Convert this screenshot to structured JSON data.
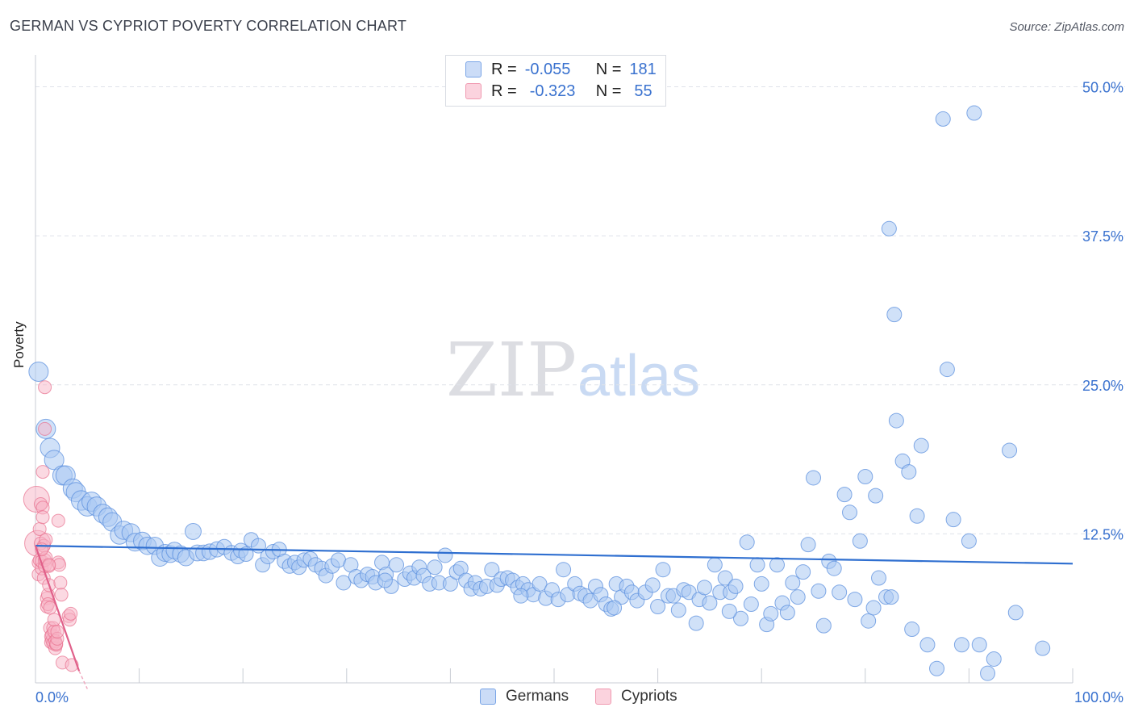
{
  "header": {
    "title": "GERMAN VS CYPRIOT POVERTY CORRELATION CHART",
    "source": "Source: ZipAtlas.com"
  },
  "watermark": {
    "part1": "ZIP",
    "part2": "atlas"
  },
  "legend": {
    "rows": [
      {
        "r_label": "R =",
        "r_value": "-0.055",
        "n_label": "N =",
        "n_value": "181",
        "color": "#a9c8f3"
      },
      {
        "r_label": "R =",
        "r_value": "-0.323",
        "n_label": "N =",
        "n_value": "55",
        "color": "#f7b4c6"
      }
    ]
  },
  "bottom_legend": [
    {
      "label": "Germans",
      "color": "#a9c8f3"
    },
    {
      "label": "Cypriots",
      "color": "#f7b4c6"
    }
  ],
  "chart_data": {
    "type": "scatter",
    "title": "GERMAN VS CYPRIOT POVERTY CORRELATION CHART",
    "xlabel": "",
    "ylabel": "Poverty",
    "xlim": [
      0,
      100
    ],
    "ylim": [
      0,
      52
    ],
    "x_tick_labels": [
      "0.0%",
      "100.0%"
    ],
    "y_ticks": [
      12.5,
      25.0,
      37.5,
      50.0
    ],
    "y_tick_labels": [
      "12.5%",
      "25.0%",
      "37.5%",
      "50.0%"
    ],
    "grid": "horizontal dashed",
    "colors": {
      "germans": "#5b8fde",
      "germans_fill": "#a9c8f3",
      "cypriots": "#e8718f",
      "cypriots_fill": "#f7b4c6",
      "tick_text": "#3a72cf"
    },
    "series": [
      {
        "name": "Germans",
        "trend": {
          "x": [
            0,
            100
          ],
          "y": [
            11.5,
            10.0
          ]
        },
        "points": [
          [
            0.3,
            26.1
          ],
          [
            1.0,
            21.3
          ],
          [
            1.4,
            19.7
          ],
          [
            1.8,
            18.7
          ],
          [
            2.6,
            17.4
          ],
          [
            2.9,
            17.4
          ],
          [
            3.6,
            16.3
          ],
          [
            3.9,
            16.0
          ],
          [
            4.4,
            15.3
          ],
          [
            5.0,
            14.8
          ],
          [
            5.4,
            15.2
          ],
          [
            5.9,
            14.8
          ],
          [
            6.5,
            14.2
          ],
          [
            7.0,
            13.9
          ],
          [
            7.4,
            13.5
          ],
          [
            8.1,
            12.4
          ],
          [
            8.5,
            12.8
          ],
          [
            9.2,
            12.6
          ],
          [
            9.6,
            11.8
          ],
          [
            10.3,
            11.9
          ],
          [
            10.8,
            11.5
          ],
          [
            11.5,
            11.5
          ],
          [
            12.0,
            10.5
          ],
          [
            12.5,
            10.9
          ],
          [
            13.0,
            10.8
          ],
          [
            13.4,
            11.1
          ],
          [
            14.0,
            10.8
          ],
          [
            14.5,
            10.5
          ],
          [
            15.2,
            12.7
          ],
          [
            15.6,
            10.9
          ],
          [
            16.2,
            10.9
          ],
          [
            16.8,
            11.0
          ],
          [
            17.5,
            11.2
          ],
          [
            18.2,
            11.4
          ],
          [
            18.9,
            10.9
          ],
          [
            19.5,
            10.6
          ],
          [
            19.8,
            11.1
          ],
          [
            20.3,
            10.8
          ],
          [
            20.8,
            12.0
          ],
          [
            21.5,
            11.5
          ],
          [
            21.9,
            9.9
          ],
          [
            22.4,
            10.6
          ],
          [
            22.9,
            11.0
          ],
          [
            23.5,
            11.2
          ],
          [
            24.0,
            10.2
          ],
          [
            24.5,
            9.8
          ],
          [
            25.0,
            10.1
          ],
          [
            25.4,
            9.7
          ],
          [
            25.9,
            10.3
          ],
          [
            26.5,
            10.4
          ],
          [
            27.0,
            9.9
          ],
          [
            27.6,
            9.6
          ],
          [
            28.0,
            9.0
          ],
          [
            28.6,
            9.8
          ],
          [
            29.2,
            10.3
          ],
          [
            29.7,
            8.4
          ],
          [
            30.4,
            9.9
          ],
          [
            30.9,
            8.9
          ],
          [
            31.4,
            8.6
          ],
          [
            32.0,
            9.1
          ],
          [
            32.5,
            8.9
          ],
          [
            32.8,
            8.4
          ],
          [
            33.4,
            10.1
          ],
          [
            33.8,
            9.1
          ],
          [
            34.3,
            8.1
          ],
          [
            34.8,
            9.9
          ],
          [
            35.6,
            8.7
          ],
          [
            36.1,
            9.2
          ],
          [
            36.5,
            8.8
          ],
          [
            37.0,
            9.7
          ],
          [
            37.4,
            9.0
          ],
          [
            38.0,
            8.3
          ],
          [
            38.5,
            9.7
          ],
          [
            38.9,
            8.4
          ],
          [
            39.5,
            10.7
          ],
          [
            40.0,
            8.3
          ],
          [
            40.6,
            9.3
          ],
          [
            41.0,
            9.6
          ],
          [
            41.5,
            8.6
          ],
          [
            42.0,
            7.9
          ],
          [
            42.4,
            8.4
          ],
          [
            42.9,
            7.9
          ],
          [
            43.5,
            8.1
          ],
          [
            44.0,
            9.5
          ],
          [
            44.5,
            8.2
          ],
          [
            44.9,
            8.7
          ],
          [
            45.5,
            8.8
          ],
          [
            46.0,
            8.6
          ],
          [
            46.5,
            8.0
          ],
          [
            47.0,
            8.3
          ],
          [
            47.5,
            7.8
          ],
          [
            48.0,
            7.4
          ],
          [
            48.6,
            8.3
          ],
          [
            49.2,
            7.1
          ],
          [
            49.8,
            7.8
          ],
          [
            50.4,
            7.0
          ],
          [
            50.9,
            9.5
          ],
          [
            51.3,
            7.4
          ],
          [
            52.0,
            8.3
          ],
          [
            52.5,
            7.5
          ],
          [
            53.0,
            7.3
          ],
          [
            53.5,
            6.9
          ],
          [
            54.0,
            8.1
          ],
          [
            54.5,
            7.4
          ],
          [
            55.0,
            6.6
          ],
          [
            55.5,
            6.2
          ],
          [
            56.0,
            8.3
          ],
          [
            56.5,
            7.2
          ],
          [
            57.0,
            8.1
          ],
          [
            57.5,
            7.6
          ],
          [
            58.0,
            6.9
          ],
          [
            58.8,
            7.6
          ],
          [
            59.5,
            8.2
          ],
          [
            60.0,
            6.4
          ],
          [
            60.5,
            9.5
          ],
          [
            61.0,
            7.3
          ],
          [
            61.5,
            7.3
          ],
          [
            62.0,
            6.1
          ],
          [
            62.5,
            7.8
          ],
          [
            63.0,
            7.6
          ],
          [
            63.7,
            5.0
          ],
          [
            64.0,
            7.0
          ],
          [
            64.5,
            8.0
          ],
          [
            65.0,
            6.7
          ],
          [
            65.5,
            9.9
          ],
          [
            66.0,
            7.6
          ],
          [
            66.5,
            8.8
          ],
          [
            67.0,
            7.6
          ],
          [
            67.5,
            8.1
          ],
          [
            68.0,
            5.4
          ],
          [
            68.6,
            11.8
          ],
          [
            69.0,
            6.6
          ],
          [
            69.6,
            9.9
          ],
          [
            70.0,
            8.3
          ],
          [
            70.5,
            4.9
          ],
          [
            70.9,
            5.8
          ],
          [
            71.5,
            9.9
          ],
          [
            72.0,
            6.7
          ],
          [
            72.5,
            5.9
          ],
          [
            73.0,
            8.4
          ],
          [
            73.5,
            7.2
          ],
          [
            74.0,
            9.3
          ],
          [
            74.5,
            11.6
          ],
          [
            75.0,
            17.2
          ],
          [
            75.5,
            7.7
          ],
          [
            76.0,
            4.8
          ],
          [
            76.5,
            10.2
          ],
          [
            77.0,
            9.6
          ],
          [
            77.5,
            7.6
          ],
          [
            78.0,
            15.8
          ],
          [
            78.5,
            14.3
          ],
          [
            79.0,
            7.0
          ],
          [
            79.5,
            11.9
          ],
          [
            80.0,
            17.3
          ],
          [
            80.3,
            5.2
          ],
          [
            80.8,
            6.3
          ],
          [
            81.0,
            15.7
          ],
          [
            81.3,
            8.8
          ],
          [
            82.0,
            7.2
          ],
          [
            82.5,
            7.2
          ],
          [
            82.8,
            30.9
          ],
          [
            83.0,
            22.0
          ],
          [
            83.6,
            18.6
          ],
          [
            84.2,
            17.7
          ],
          [
            84.5,
            4.5
          ],
          [
            85.0,
            14.0
          ],
          [
            85.4,
            19.9
          ],
          [
            86.0,
            3.2
          ],
          [
            86.9,
            1.2
          ],
          [
            87.5,
            47.3
          ],
          [
            87.9,
            26.3
          ],
          [
            88.5,
            13.7
          ],
          [
            89.3,
            3.2
          ],
          [
            90.0,
            11.9
          ],
          [
            90.5,
            47.8
          ],
          [
            91.0,
            3.2
          ],
          [
            91.8,
            0.8
          ],
          [
            92.4,
            2.0
          ],
          [
            93.9,
            19.5
          ],
          [
            94.5,
            5.9
          ],
          [
            97.1,
            2.9
          ],
          [
            82.3,
            38.1
          ],
          [
            55.8,
            6.3
          ],
          [
            66.9,
            6.0
          ],
          [
            46.8,
            7.3
          ],
          [
            33.7,
            8.6
          ]
        ]
      },
      {
        "name": "Cypriots",
        "trend": {
          "x": [
            0,
            4.2
          ],
          "y": [
            11.5,
            1.0
          ]
        },
        "points": [
          [
            0.1,
            15.4
          ],
          [
            0.2,
            11.7
          ],
          [
            0.3,
            10.1
          ],
          [
            0.3,
            9.1
          ],
          [
            0.4,
            10.3
          ],
          [
            0.4,
            12.9
          ],
          [
            0.5,
            11.7
          ],
          [
            0.5,
            15.0
          ],
          [
            0.6,
            9.6
          ],
          [
            0.6,
            10.2
          ],
          [
            0.7,
            14.7
          ],
          [
            0.7,
            13.9
          ],
          [
            0.8,
            11.5
          ],
          [
            0.8,
            8.8
          ],
          [
            0.9,
            9.8
          ],
          [
            0.9,
            10.3
          ],
          [
            1.0,
            12.0
          ],
          [
            1.0,
            10.5
          ],
          [
            1.1,
            7.1
          ],
          [
            1.1,
            6.4
          ],
          [
            1.2,
            7.4
          ],
          [
            1.2,
            6.6
          ],
          [
            1.3,
            8.2
          ],
          [
            1.3,
            9.8
          ],
          [
            1.4,
            6.3
          ],
          [
            1.4,
            4.6
          ],
          [
            1.5,
            3.9
          ],
          [
            1.5,
            3.4
          ],
          [
            1.6,
            3.6
          ],
          [
            1.6,
            4.0
          ],
          [
            1.7,
            3.3
          ],
          [
            1.7,
            4.6
          ],
          [
            1.8,
            4.3
          ],
          [
            1.8,
            5.3
          ],
          [
            1.9,
            3.5
          ],
          [
            1.9,
            2.9
          ],
          [
            2.0,
            3.2
          ],
          [
            2.0,
            3.3
          ],
          [
            2.1,
            3.7
          ],
          [
            2.1,
            4.3
          ],
          [
            2.2,
            13.6
          ],
          [
            2.2,
            10.1
          ],
          [
            2.3,
            9.9
          ],
          [
            2.4,
            8.4
          ],
          [
            2.5,
            7.4
          ],
          [
            2.6,
            1.7
          ],
          [
            0.9,
            24.8
          ],
          [
            0.9,
            21.3
          ],
          [
            0.7,
            17.7
          ],
          [
            0.6,
            11.2
          ],
          [
            3.2,
            5.6
          ],
          [
            3.3,
            5.3
          ],
          [
            3.4,
            5.8
          ],
          [
            3.5,
            1.5
          ],
          [
            1.3,
            9.9
          ]
        ]
      }
    ]
  }
}
